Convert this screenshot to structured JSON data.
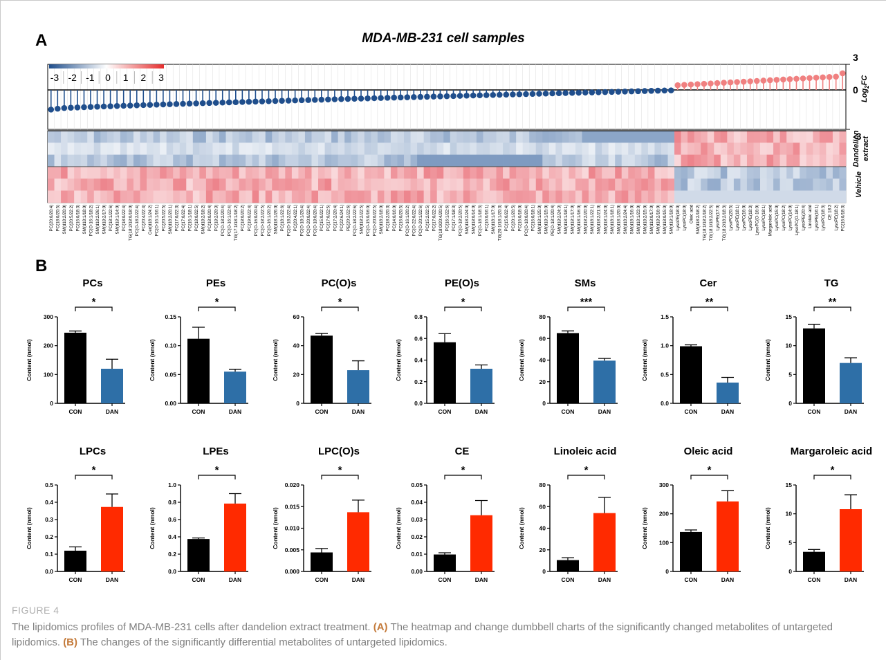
{
  "panel_a_label": "A",
  "panel_b_label": "B",
  "caption": {
    "title": "FIGURE 4",
    "text_before_a": "The lipidomics profiles of MDA-MB-231 cells after dandelion extract treatment. ",
    "marker_a": "(A)",
    "text_a": " The heatmap and change dumbbell charts of the significantly changed metabolites of untargeted lipidomics. ",
    "marker_b": "(B)",
    "text_b": " The changes of the significantly differential metabolites of untargeted lipidomics."
  },
  "colors": {
    "con_bar": "#000000",
    "dan_down": "#2e6fa7",
    "dan_up": "#ff2a00",
    "neg_dot": "#1f4e8c",
    "pos_dot": "#f08080"
  },
  "chart_data": [
    {
      "type": "heatmap",
      "title": "MDA-MB-231 cell samples",
      "ylabel": "Log2FC",
      "yticks": [
        "3",
        "0",
        "-3"
      ],
      "ylim": [
        -3,
        3
      ],
      "color_scale_ticks": [
        "-3",
        "-2",
        "-1",
        "0",
        "1",
        "2",
        "3"
      ],
      "row_groups": [
        "Dandelion extract",
        "Vehicle"
      ],
      "metabolites": [
        "PC(20:0/20:4)",
        "PC(18:0/20:5)",
        "SM(d18:2/20:0)",
        "PC(20:5/22:2)",
        "PC(16:0/18:3)",
        "SM(d18:1/18:0)",
        "PC(O-16:1/18:2)",
        "SM(d18:2/26:1)",
        "SM(d18:2/17:0)",
        "PC(18:1/22:6)",
        "SM(d18:1/14:0)",
        "PC(18:0/22:4)",
        "TG(18:2/18:0/18:0)",
        "PC(O-18:2/22:4)",
        "PC(20:4/22:4)",
        "Cer(d18:1/24:2)",
        "PC(O-16:1/16:1)",
        "PC(20:5/22:5)",
        "SM(d18:2/20:1)",
        "PC(17:0/22:3)",
        "PC(17:0/22:4)",
        "PC(16:1/18:1)",
        "PC(18:0/22:5)",
        "SM(d18:2/18:2)",
        "PC(18:0/20:4)",
        "PC(18:2/20:3)",
        "PC(O-18:2/20:4)",
        "PC(O-16:1/22:4)",
        "TG(17:1/18:1/18:2)",
        "PC(18:0/20:2)",
        "PC(19:0/22:4)",
        "PC(O-16:0/20:4)",
        "PC(O-18:2/22:5)",
        "PC(O-16:1/20:2)",
        "SM(d18:1/26:0)",
        "PC(18:1/22:6)",
        "PC(O-18:2/22:4)",
        "PC(20:4/22:1)",
        "PC(O-18:1/20:4)",
        "PC(O-20:0/22:4)",
        "PC(O-18:0/20:4)",
        "PC(15:0/22:1)",
        "PC(17:0/22:5)",
        "PC(17:2/20:4)",
        "PC(22:6/24:1)",
        "PE(20:2/22:6)",
        "PC(O-18:2/22:6)",
        "SM(d18:2/22:5)",
        "PC(O-15:0/16:0)",
        "PC(O-20:0/22:5)",
        "SM(d18:2/18:0)",
        "PC(18:2/20:3)",
        "PC(14:0/16:0)",
        "PC(16:0/20:5)",
        "PC(O-16:1/20:2)",
        "PC(O-22:0/22:4)",
        "PC(O-20:1/22:6)",
        "PC(15:2/22:5)",
        "PC(17:0/22:2)",
        "TG(18:0/20:4/20:5)",
        "PC(16:1/22:6)",
        "PC(17:1/18:3)",
        "PC(O-18:2/20:5)",
        "SM(d18:2/24:0)",
        "SM(d18:0/14:0)",
        "PC(O-18:1/18:3)",
        "PC(16:0/16:1)",
        "SM(d18:1/17:0)",
        "TG(20:1/18:1/20:3)",
        "PC(15:0/22:4)",
        "PC(20:1/20:5)",
        "PC(16:0/18:0)",
        "PC(O-18:0/20:4)",
        "PC(16:0/18:1)",
        "SM(d18:1/25:0)",
        "SM(d18:1/15:0)",
        "PE(O-18:1/20:4)",
        "SM(d18:2/24:3)",
        "SM(d18:1/18:1)",
        "SM(d18:1/17:0)",
        "SM(d18:1/16:0)",
        "SM(d18:2/20:0)",
        "SM(d18:1/22:1)",
        "SM(d18:2/21:0)",
        "SM(d18:1/24:0)",
        "SM(d18:1/18:1)",
        "SM(d18:1/20:0)",
        "SM(d18:2/24:4)",
        "SM(d18:1/16:0)",
        "SM(d18:1/23:0)",
        "SM(d18:2/15:0)",
        "SM(d18:0/17:0)",
        "SM(d18:2/16:0)",
        "SM(d18:0/15:0)",
        "SM(d18:1/18:0)",
        "LysoPE(18:0)",
        "LysoPC(18:0)",
        "Oleic acid",
        "SM(d18:2/18:2)",
        "TG(18:1/18:2/18:2)",
        "TG(18:1/18:2/22:5)",
        "LysoPE(17:0)",
        "TG(18:2/18:2/18:3)",
        "LysoPC(20:5)",
        "LysoPE(18:1)",
        "LysoPC(16:0)",
        "LysoPE(18:3)",
        "LysoPC(O-16:0)",
        "LysoPC(18:1)",
        "Margaroleic acid",
        "LysoPC(15:0)",
        "LysoPC(18:2)",
        "LysoPC(14:0)",
        "LysoPC(O-18:1)",
        "LysoPE(20:4)",
        "Linoleic acid",
        "LysoPE(16:1)",
        "LysoPC(18:3)",
        "CE 18:3",
        "LysoPE(18:2)",
        "PC(16:0/18:3)"
      ]
    },
    {
      "type": "bar",
      "title": "PCs",
      "categories": [
        "CON",
        "DAN"
      ],
      "values": [
        245,
        120
      ],
      "errors": [
        6,
        33
      ],
      "ylabel": "Content (nmol)",
      "ylim": [
        0,
        300
      ],
      "yticks": [
        "0",
        "100",
        "200",
        "300"
      ],
      "significance": "*",
      "direction": "down"
    },
    {
      "type": "bar",
      "title": "PEs",
      "categories": [
        "CON",
        "DAN"
      ],
      "values": [
        0.112,
        0.055
      ],
      "errors": [
        0.02,
        0.004
      ],
      "ylabel": "Content (nmol)",
      "ylim": [
        0,
        0.15
      ],
      "yticks": [
        "0.00",
        "0.05",
        "0.10",
        "0.15"
      ],
      "significance": "*",
      "direction": "down"
    },
    {
      "type": "bar",
      "title": "PC(O)s",
      "categories": [
        "CON",
        "DAN"
      ],
      "values": [
        47,
        23
      ],
      "errors": [
        1.5,
        6.5
      ],
      "ylabel": "Content (nmol)",
      "ylim": [
        0,
        60
      ],
      "yticks": [
        "0",
        "20",
        "40",
        "60"
      ],
      "significance": "*",
      "direction": "down"
    },
    {
      "type": "bar",
      "title": "PE(O)s",
      "categories": [
        "CON",
        "DAN"
      ],
      "values": [
        0.565,
        0.32
      ],
      "errors": [
        0.08,
        0.035
      ],
      "ylabel": "Content (nmol)",
      "ylim": [
        0,
        0.8
      ],
      "yticks": [
        "0.0",
        "0.2",
        "0.4",
        "0.6",
        "0.8"
      ],
      "significance": "*",
      "direction": "down"
    },
    {
      "type": "bar",
      "title": "SMs",
      "categories": [
        "CON",
        "DAN"
      ],
      "values": [
        65,
        39.5
      ],
      "errors": [
        2,
        2
      ],
      "ylabel": "Content (nmol)",
      "ylim": [
        0,
        80
      ],
      "yticks": [
        "0",
        "20",
        "40",
        "60",
        "80"
      ],
      "significance": "***",
      "direction": "down"
    },
    {
      "type": "bar",
      "title": "Cer",
      "categories": [
        "CON",
        "DAN"
      ],
      "values": [
        0.99,
        0.36
      ],
      "errors": [
        0.025,
        0.09
      ],
      "ylabel": "Content (nmol)",
      "ylim": [
        0,
        1.5
      ],
      "yticks": [
        "0.0",
        "0.5",
        "1.0",
        "1.5"
      ],
      "significance": "**",
      "direction": "down"
    },
    {
      "type": "bar",
      "title": "TG",
      "categories": [
        "CON",
        "DAN"
      ],
      "values": [
        13,
        7
      ],
      "errors": [
        0.7,
        0.9
      ],
      "ylabel": "Content (nmol)",
      "ylim": [
        0,
        15
      ],
      "yticks": [
        "0",
        "5",
        "10",
        "15"
      ],
      "significance": "**",
      "direction": "down"
    },
    {
      "type": "bar",
      "title": "LPCs",
      "categories": [
        "CON",
        "DAN"
      ],
      "values": [
        0.12,
        0.373
      ],
      "errors": [
        0.022,
        0.075
      ],
      "ylabel": "Content (nmol)",
      "ylim": [
        0,
        0.5
      ],
      "yticks": [
        "0.0",
        "0.1",
        "0.2",
        "0.3",
        "0.4",
        "0.5"
      ],
      "significance": "*",
      "direction": "up"
    },
    {
      "type": "bar",
      "title": "LPEs",
      "categories": [
        "CON",
        "DAN"
      ],
      "values": [
        0.375,
        0.785
      ],
      "errors": [
        0.012,
        0.115
      ],
      "ylabel": "Content (nmol)",
      "ylim": [
        0,
        1.0
      ],
      "yticks": [
        "0.0",
        "0.2",
        "0.4",
        "0.6",
        "0.8",
        "1.0"
      ],
      "significance": "*",
      "direction": "up"
    },
    {
      "type": "bar",
      "title": "LPC(O)s",
      "categories": [
        "CON",
        "DAN"
      ],
      "values": [
        0.0044,
        0.0137
      ],
      "errors": [
        0.0009,
        0.0028
      ],
      "ylabel": "Content (nmol)",
      "ylim": [
        0,
        0.02
      ],
      "yticks": [
        "0.000",
        "0.005",
        "0.010",
        "0.015",
        "0.020"
      ],
      "significance": "*",
      "direction": "up"
    },
    {
      "type": "bar",
      "title": "CE",
      "categories": [
        "CON",
        "DAN"
      ],
      "values": [
        0.0098,
        0.0325
      ],
      "errors": [
        0.001,
        0.0085
      ],
      "ylabel": "Content (nmol)",
      "ylim": [
        0,
        0.05
      ],
      "yticks": [
        "0.00",
        "0.01",
        "0.02",
        "0.03",
        "0.04",
        "0.05"
      ],
      "significance": "*",
      "direction": "up"
    },
    {
      "type": "bar",
      "title": "Linoleic acid",
      "categories": [
        "CON",
        "DAN"
      ],
      "values": [
        10.5,
        54
      ],
      "errors": [
        2.2,
        14.5
      ],
      "ylabel": "Content (nmol)",
      "ylim": [
        0,
        80
      ],
      "yticks": [
        "0",
        "20",
        "40",
        "60",
        "80"
      ],
      "significance": "*",
      "direction": "up"
    },
    {
      "type": "bar",
      "title": "Oleic acid",
      "categories": [
        "CON",
        "DAN"
      ],
      "values": [
        137,
        243
      ],
      "errors": [
        7,
        37
      ],
      "ylabel": "Content (nmol)",
      "ylim": [
        0,
        300
      ],
      "yticks": [
        "0",
        "100",
        "200",
        "300"
      ],
      "significance": "*",
      "direction": "up"
    },
    {
      "type": "bar",
      "title": "Margaroleic acid",
      "categories": [
        "CON",
        "DAN"
      ],
      "values": [
        3.4,
        10.8
      ],
      "errors": [
        0.4,
        2.5
      ],
      "ylabel": "Content (nmol)",
      "ylim": [
        0,
        15
      ],
      "yticks": [
        "0",
        "5",
        "10",
        "15"
      ],
      "significance": "*",
      "direction": "up"
    }
  ]
}
